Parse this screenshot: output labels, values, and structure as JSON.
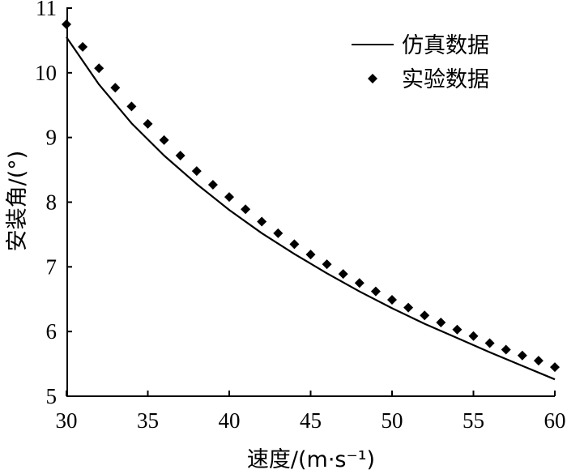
{
  "chart_data": {
    "type": "line",
    "xlabel": "速度/(m·s⁻¹)",
    "ylabel": "安装角/(°)",
    "xlim": [
      30,
      60
    ],
    "ylim": [
      5,
      11
    ],
    "x_ticks": [
      "30",
      "35",
      "40",
      "45",
      "50",
      "55",
      "60"
    ],
    "y_ticks": [
      "5",
      "6",
      "7",
      "8",
      "9",
      "10",
      "11"
    ],
    "grid": false,
    "legend_position": "top-right",
    "series": [
      {
        "name": "仿真数据",
        "style": "line",
        "color": "#000000",
        "x": [
          30,
          32,
          34,
          36,
          38,
          40,
          42,
          44,
          46,
          48,
          50,
          52,
          54,
          56,
          58,
          60
        ],
        "y": [
          10.55,
          9.82,
          9.22,
          8.72,
          8.28,
          7.88,
          7.52,
          7.2,
          6.9,
          6.62,
          6.36,
          6.12,
          5.9,
          5.68,
          5.47,
          5.26
        ]
      },
      {
        "name": "实验数据",
        "style": "markers",
        "marker": "diamond",
        "color": "#000000",
        "x": [
          30,
          31,
          32,
          33,
          34,
          35,
          36,
          37,
          38,
          39,
          40,
          41,
          42,
          43,
          44,
          45,
          46,
          47,
          48,
          49,
          50,
          51,
          52,
          53,
          54,
          55,
          56,
          57,
          58,
          59,
          60
        ],
        "y": [
          10.75,
          10.4,
          10.07,
          9.77,
          9.48,
          9.21,
          8.96,
          8.72,
          8.48,
          8.27,
          8.08,
          7.89,
          7.7,
          7.52,
          7.35,
          7.19,
          7.04,
          6.89,
          6.75,
          6.62,
          6.49,
          6.37,
          6.25,
          6.14,
          6.03,
          5.93,
          5.82,
          5.72,
          5.63,
          5.55,
          5.45
        ]
      }
    ]
  }
}
